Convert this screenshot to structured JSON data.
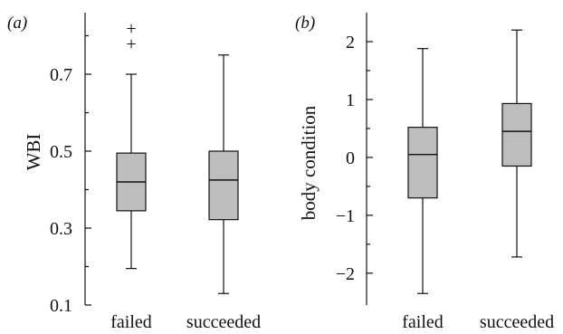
{
  "colors": {
    "box_fill": "#bdbdbd",
    "ink": "#111111"
  },
  "chart_data": [
    {
      "type": "box",
      "panel_label": "(a)",
      "ylabel": "WBI",
      "xlabel": "",
      "ylim": [
        0.1,
        0.86
      ],
      "yticks": [
        0.1,
        0.3,
        0.5,
        0.7
      ],
      "ytick_labels": [
        "0.1",
        "0.3",
        "0.5",
        "0.7"
      ],
      "yminor": [
        0.2,
        0.4,
        0.6,
        0.8
      ],
      "categories": [
        "failed",
        "succeeded"
      ],
      "boxes": [
        {
          "min": 0.195,
          "q1": 0.345,
          "median": 0.42,
          "q3": 0.495,
          "max": 0.7,
          "outliers": [
            0.78,
            0.82
          ]
        },
        {
          "min": 0.13,
          "q1": 0.322,
          "median": 0.425,
          "q3": 0.5,
          "max": 0.75,
          "outliers": []
        }
      ]
    },
    {
      "type": "box",
      "panel_label": "(b)",
      "ylabel": "body condition",
      "xlabel": "",
      "ylim": [
        -2.55,
        2.5
      ],
      "yticks": [
        -2,
        -1,
        0,
        1,
        2
      ],
      "ytick_labels": [
        "−2",
        "−1",
        "0",
        "1",
        "2"
      ],
      "yminor": [
        -1.5,
        -0.5,
        0.5,
        1.5
      ],
      "categories": [
        "failed",
        "succeeded"
      ],
      "boxes": [
        {
          "min": -2.35,
          "q1": -0.7,
          "median": 0.05,
          "q3": 0.52,
          "max": 1.88,
          "outliers": []
        },
        {
          "min": -1.72,
          "q1": -0.15,
          "median": 0.45,
          "q3": 0.93,
          "max": 2.2,
          "outliers": []
        }
      ]
    }
  ]
}
